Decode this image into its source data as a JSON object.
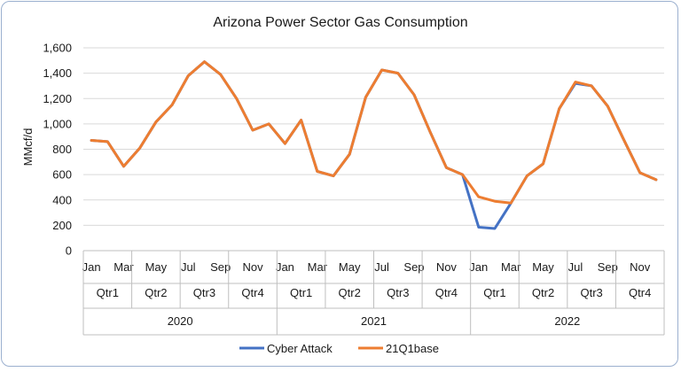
{
  "chart_data": {
    "type": "line",
    "title": "Arizona Power Sector Gas Consumption",
    "ylabel": "MMcf/d",
    "xlabel": "",
    "ylim": [
      0,
      1600
    ],
    "yticks": [
      "0",
      "200",
      "400",
      "600",
      "800",
      "1,000",
      "1,200",
      "1,400",
      "1,600"
    ],
    "grid": true,
    "legend_position": "bottom",
    "x_axis_levels": {
      "months": [
        "Jan",
        "Mar",
        "May",
        "Jul",
        "Sep",
        "Nov",
        "Jan",
        "Mar",
        "May",
        "Jul",
        "Sep",
        "Nov",
        "Jan",
        "Mar",
        "May",
        "Jul",
        "Sep",
        "Nov"
      ],
      "quarters": [
        "Qtr1",
        "Qtr2",
        "Qtr3",
        "Qtr4",
        "Qtr1",
        "Qtr2",
        "Qtr3",
        "Qtr4",
        "Qtr1",
        "Qtr2",
        "Qtr3",
        "Qtr4"
      ],
      "years": [
        "2020",
        "2021",
        "2022"
      ]
    },
    "x": [
      "2020-01",
      "2020-02",
      "2020-03",
      "2020-04",
      "2020-05",
      "2020-06",
      "2020-07",
      "2020-08",
      "2020-09",
      "2020-10",
      "2020-11",
      "2020-12",
      "2021-01",
      "2021-02",
      "2021-03",
      "2021-04",
      "2021-05",
      "2021-06",
      "2021-07",
      "2021-08",
      "2021-09",
      "2021-10",
      "2021-11",
      "2021-12",
      "2022-01",
      "2022-02",
      "2022-03",
      "2022-04",
      "2022-05",
      "2022-06",
      "2022-07",
      "2022-08",
      "2022-09",
      "2022-10",
      "2022-11",
      "2022-12"
    ],
    "series": [
      {
        "name": "Cyber Attack",
        "color": "#4472c4",
        "values": [
          870,
          860,
          665,
          810,
          1015,
          1150,
          1380,
          1490,
          1390,
          1200,
          950,
          1000,
          845,
          1030,
          625,
          590,
          760,
          1210,
          1425,
          1400,
          1230,
          935,
          655,
          600,
          185,
          175,
          375,
          590,
          685,
          1120,
          1320,
          1300,
          1140,
          875,
          615,
          560
        ]
      },
      {
        "name": "21Q1base",
        "color": "#ed7d31",
        "values": [
          870,
          860,
          665,
          810,
          1015,
          1150,
          1380,
          1490,
          1390,
          1200,
          950,
          1000,
          845,
          1030,
          625,
          590,
          760,
          1210,
          1425,
          1400,
          1230,
          935,
          655,
          600,
          425,
          390,
          375,
          590,
          685,
          1120,
          1330,
          1300,
          1140,
          875,
          615,
          560
        ]
      }
    ]
  }
}
